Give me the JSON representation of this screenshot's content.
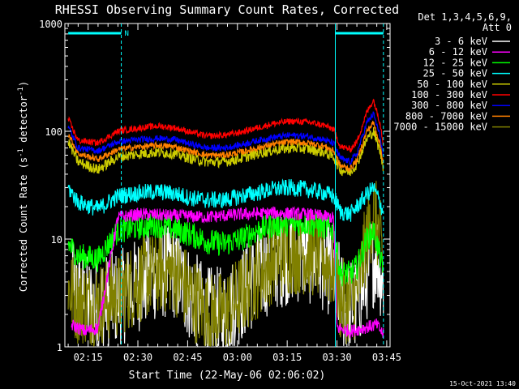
{
  "chart_data": {
    "type": "line",
    "title": "RHESSI Observing Summary Count Rates, Corrected",
    "xlabel": "Start Time (22-May-06 02:06:02)",
    "ylabel_main": "Corrected Count Rate (s",
    "ylabel_sup1": "-1",
    "ylabel_mid": " detector",
    "ylabel_sup2": "-1",
    "ylabel_end": ")",
    "yscale": "log",
    "ylim": [
      1,
      1000
    ],
    "y_ticks": [
      {
        "value": 1,
        "label": "1"
      },
      {
        "value": 10,
        "label": "10"
      },
      {
        "value": 100,
        "label": "100"
      },
      {
        "value": 1000,
        "label": "1000"
      }
    ],
    "xlim_minutes": [
      2.0,
      100.0
    ],
    "x_ticks": [
      {
        "minute": 9,
        "label": "02:15"
      },
      {
        "minute": 24,
        "label": "02:30"
      },
      {
        "minute": 39,
        "label": "02:45"
      },
      {
        "minute": 54,
        "label": "03:00"
      },
      {
        "minute": 69,
        "label": "03:15"
      },
      {
        "minute": 84,
        "label": "03:30"
      },
      {
        "minute": 99,
        "label": "03:45"
      }
    ],
    "detectors_line1": "Det 1,3,4,5,6,9,",
    "detectors_line2": "Att 0",
    "timestamp": "15-Oct-2021 13:40",
    "night_segments": [
      {
        "start": 3.0,
        "end": 19.0,
        "label": "N"
      },
      {
        "start": 83.5,
        "end": 98.0,
        "label": ""
      }
    ],
    "vertical_markers_minutes": [
      19.0,
      83.5,
      98.0
    ],
    "series": [
      {
        "name": "3 - 6 keV",
        "color": "#ffffff",
        "points": [
          [
            4,
            3.5
          ],
          [
            8,
            2.6
          ],
          [
            12,
            2.5
          ],
          [
            20,
            3
          ],
          [
            25,
            4
          ],
          [
            30,
            5
          ],
          [
            35,
            5
          ],
          [
            40,
            3
          ],
          [
            45,
            2
          ],
          [
            50,
            2
          ],
          [
            55,
            3
          ],
          [
            60,
            4.5
          ],
          [
            65,
            6
          ],
          [
            70,
            7
          ],
          [
            75,
            7
          ],
          [
            80,
            6
          ],
          [
            83,
            5
          ],
          [
            86,
            2.5
          ],
          [
            90,
            2.4
          ],
          [
            94,
            6
          ],
          [
            96,
            7
          ],
          [
            98,
            4
          ]
        ]
      },
      {
        "name": "6 - 12 keV",
        "color": "#ff00ff",
        "points": [
          [
            4,
            1.6
          ],
          [
            8,
            1.4
          ],
          [
            12,
            1.5
          ],
          [
            18,
            16
          ],
          [
            25,
            17
          ],
          [
            35,
            16.5
          ],
          [
            45,
            16
          ],
          [
            55,
            17
          ],
          [
            65,
            17.5
          ],
          [
            75,
            17
          ],
          [
            82,
            16
          ],
          [
            83,
            15.5
          ],
          [
            84,
            1.5
          ],
          [
            88,
            1.4
          ],
          [
            92,
            1.5
          ],
          [
            96,
            1.6
          ],
          [
            98,
            1.3
          ]
        ]
      },
      {
        "name": "12 - 25 keV",
        "color": "#00ff00",
        "points": [
          [
            3,
            9
          ],
          [
            6,
            7
          ],
          [
            12,
            6.5
          ],
          [
            18,
            12
          ],
          [
            25,
            13
          ],
          [
            30,
            13.5
          ],
          [
            35,
            12.5
          ],
          [
            40,
            11
          ],
          [
            45,
            9.5
          ],
          [
            50,
            9
          ],
          [
            55,
            10
          ],
          [
            60,
            12
          ],
          [
            65,
            13.5
          ],
          [
            70,
            14
          ],
          [
            75,
            14
          ],
          [
            80,
            13
          ],
          [
            83,
            12
          ],
          [
            85,
            4.8
          ],
          [
            88,
            4.8
          ],
          [
            90,
            5.5
          ],
          [
            93,
            10
          ],
          [
            95,
            12
          ],
          [
            97,
            7
          ],
          [
            98,
            4.5
          ]
        ]
      },
      {
        "name": "25 - 50 keV",
        "color": "#00ffff",
        "points": [
          [
            3,
            30
          ],
          [
            6,
            22
          ],
          [
            12,
            19
          ],
          [
            18,
            25
          ],
          [
            25,
            27
          ],
          [
            30,
            27.5
          ],
          [
            35,
            26.5
          ],
          [
            40,
            24
          ],
          [
            45,
            23
          ],
          [
            50,
            23
          ],
          [
            55,
            25
          ],
          [
            60,
            27
          ],
          [
            65,
            29
          ],
          [
            70,
            30
          ],
          [
            75,
            29
          ],
          [
            80,
            27
          ],
          [
            83,
            25
          ],
          [
            85,
            18
          ],
          [
            88,
            17
          ],
          [
            90,
            20
          ],
          [
            93,
            26
          ],
          [
            95,
            30
          ],
          [
            97,
            22
          ],
          [
            98,
            17
          ]
        ]
      },
      {
        "name": "50 - 100 keV",
        "color": "#cccc00",
        "points": [
          [
            3,
            80
          ],
          [
            6,
            52
          ],
          [
            12,
            44
          ],
          [
            18,
            58
          ],
          [
            25,
            62
          ],
          [
            30,
            64
          ],
          [
            35,
            62
          ],
          [
            40,
            56
          ],
          [
            45,
            52
          ],
          [
            50,
            52
          ],
          [
            55,
            56
          ],
          [
            60,
            62
          ],
          [
            65,
            67
          ],
          [
            70,
            70
          ],
          [
            75,
            69
          ],
          [
            80,
            64
          ],
          [
            83,
            58
          ],
          [
            85,
            44
          ],
          [
            88,
            42
          ],
          [
            90,
            50
          ],
          [
            93,
            85
          ],
          [
            95,
            100
          ],
          [
            97,
            65
          ],
          [
            98,
            46
          ]
        ]
      },
      {
        "name": "100 - 300 keV",
        "color": "#ff0000",
        "points": [
          [
            3,
            130
          ],
          [
            6,
            82
          ],
          [
            12,
            78
          ],
          [
            18,
            100
          ],
          [
            25,
            108
          ],
          [
            30,
            112
          ],
          [
            35,
            108
          ],
          [
            40,
            98
          ],
          [
            45,
            90
          ],
          [
            50,
            92
          ],
          [
            55,
            98
          ],
          [
            60,
            108
          ],
          [
            65,
            118
          ],
          [
            70,
            124
          ],
          [
            75,
            122
          ],
          [
            80,
            114
          ],
          [
            83,
            104
          ],
          [
            85,
            72
          ],
          [
            88,
            68
          ],
          [
            90,
            80
          ],
          [
            93,
            150
          ],
          [
            95,
            195
          ],
          [
            97,
            120
          ],
          [
            98,
            75
          ]
        ]
      },
      {
        "name": "300 - 800 keV",
        "color": "#0000ff",
        "points": [
          [
            3,
            110
          ],
          [
            6,
            70
          ],
          [
            12,
            66
          ],
          [
            18,
            80
          ],
          [
            25,
            84
          ],
          [
            30,
            86
          ],
          [
            35,
            84
          ],
          [
            40,
            76
          ],
          [
            45,
            70
          ],
          [
            50,
            70
          ],
          [
            55,
            75
          ],
          [
            60,
            82
          ],
          [
            65,
            88
          ],
          [
            70,
            92
          ],
          [
            75,
            90
          ],
          [
            80,
            84
          ],
          [
            83,
            77
          ],
          [
            85,
            56
          ],
          [
            88,
            52
          ],
          [
            90,
            62
          ],
          [
            93,
            120
          ],
          [
            95,
            145
          ],
          [
            97,
            90
          ],
          [
            98,
            57
          ]
        ]
      },
      {
        "name": "800 - 7000 keV",
        "color": "#ff8000",
        "points": [
          [
            3,
            95
          ],
          [
            6,
            62
          ],
          [
            12,
            55
          ],
          [
            18,
            68
          ],
          [
            25,
            72
          ],
          [
            30,
            74
          ],
          [
            35,
            72
          ],
          [
            40,
            65
          ],
          [
            45,
            60
          ],
          [
            50,
            60
          ],
          [
            55,
            64
          ],
          [
            60,
            70
          ],
          [
            65,
            76
          ],
          [
            70,
            80
          ],
          [
            75,
            78
          ],
          [
            80,
            73
          ],
          [
            83,
            66
          ],
          [
            85,
            48
          ],
          [
            88,
            45
          ],
          [
            90,
            54
          ],
          [
            93,
            100
          ],
          [
            95,
            120
          ],
          [
            97,
            76
          ],
          [
            98,
            50
          ]
        ]
      },
      {
        "name": "7000 - 15000 keV",
        "color": "#808000",
        "points": [
          [
            3,
            3.5
          ],
          [
            6,
            2.6
          ],
          [
            12,
            2.5
          ],
          [
            18,
            3
          ],
          [
            25,
            4.2
          ],
          [
            30,
            5
          ],
          [
            35,
            5
          ],
          [
            40,
            3
          ],
          [
            45,
            2
          ],
          [
            50,
            2
          ],
          [
            55,
            3
          ],
          [
            60,
            4.5
          ],
          [
            65,
            6.5
          ],
          [
            70,
            7.5
          ],
          [
            75,
            7.5
          ],
          [
            80,
            6.5
          ],
          [
            83,
            5
          ],
          [
            85,
            2.7
          ],
          [
            88,
            2.6
          ],
          [
            90,
            3
          ],
          [
            93,
            10
          ],
          [
            95,
            18
          ],
          [
            97,
            10
          ],
          [
            98,
            5
          ]
        ]
      }
    ]
  }
}
